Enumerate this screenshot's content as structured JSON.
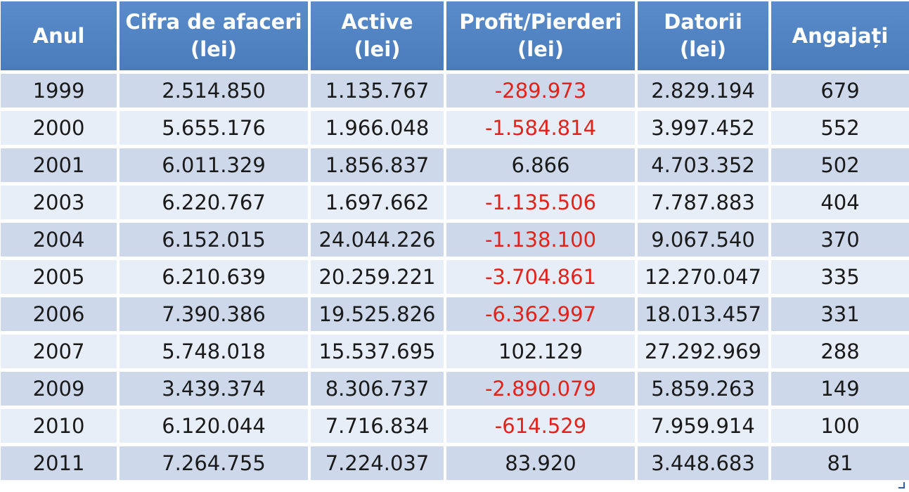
{
  "table": {
    "headers": [
      {
        "line1": "Anul",
        "line2": ""
      },
      {
        "line1": "Cifra de afaceri",
        "line2": "(lei)"
      },
      {
        "line1": "Active",
        "line2": "(lei)"
      },
      {
        "line1": "Profit/Pierderi",
        "line2": "(lei)"
      },
      {
        "line1": "Datorii",
        "line2": "(lei)"
      },
      {
        "line1": "Angajați",
        "line2": ""
      }
    ],
    "rows": [
      {
        "year": "1999",
        "turnover": "2.514.850",
        "assets": "1.135.767",
        "profit": "-289.973",
        "profit_negative": true,
        "debts": "2.829.194",
        "employees": "679"
      },
      {
        "year": "2000",
        "turnover": "5.655.176",
        "assets": "1.966.048",
        "profit": "-1.584.814",
        "profit_negative": true,
        "debts": "3.997.452",
        "employees": "552"
      },
      {
        "year": "2001",
        "turnover": "6.011.329",
        "assets": "1.856.837",
        "profit": "6.866",
        "profit_negative": false,
        "debts": "4.703.352",
        "employees": "502"
      },
      {
        "year": "2003",
        "turnover": "6.220.767",
        "assets": "1.697.662",
        "profit": "-1.135.506",
        "profit_negative": true,
        "debts": "7.787.883",
        "employees": "404"
      },
      {
        "year": "2004",
        "turnover": "6.152.015",
        "assets": "24.044.226",
        "profit": "-1.138.100",
        "profit_negative": true,
        "debts": "9.067.540",
        "employees": "370"
      },
      {
        "year": "2005",
        "turnover": "6.210.639",
        "assets": "20.259.221",
        "profit": "-3.704.861",
        "profit_negative": true,
        "debts": "12.270.047",
        "employees": "335"
      },
      {
        "year": "2006",
        "turnover": "7.390.386",
        "assets": "19.525.826",
        "profit": "-6.362.997",
        "profit_negative": true,
        "debts": "18.013.457",
        "employees": "331"
      },
      {
        "year": "2007",
        "turnover": "5.748.018",
        "assets": "15.537.695",
        "profit": "102.129",
        "profit_negative": false,
        "debts": "27.292.969",
        "employees": "288"
      },
      {
        "year": "2009",
        "turnover": "3.439.374",
        "assets": "8.306.737",
        "profit": "-2.890.079",
        "profit_negative": true,
        "debts": "5.859.263",
        "employees": "149"
      },
      {
        "year": "2010",
        "turnover": "6.120.044",
        "assets": "7.716.834",
        "profit": "-614.529",
        "profit_negative": true,
        "debts": "7.959.914",
        "employees": "100"
      },
      {
        "year": "2011",
        "turnover": "7.264.755",
        "assets": "7.224.037",
        "profit": "83.920",
        "profit_negative": false,
        "debts": "3.448.683",
        "employees": "81"
      }
    ]
  },
  "colors": {
    "header_bg": "#4f81bd",
    "header_text": "#ffffff",
    "row_dark": "#cdd9ea",
    "row_light": "#e8eef7",
    "negative_text": "#e2231a",
    "text": "#1a1a1a"
  },
  "icons": {
    "corner": "resize-handle-icon"
  }
}
